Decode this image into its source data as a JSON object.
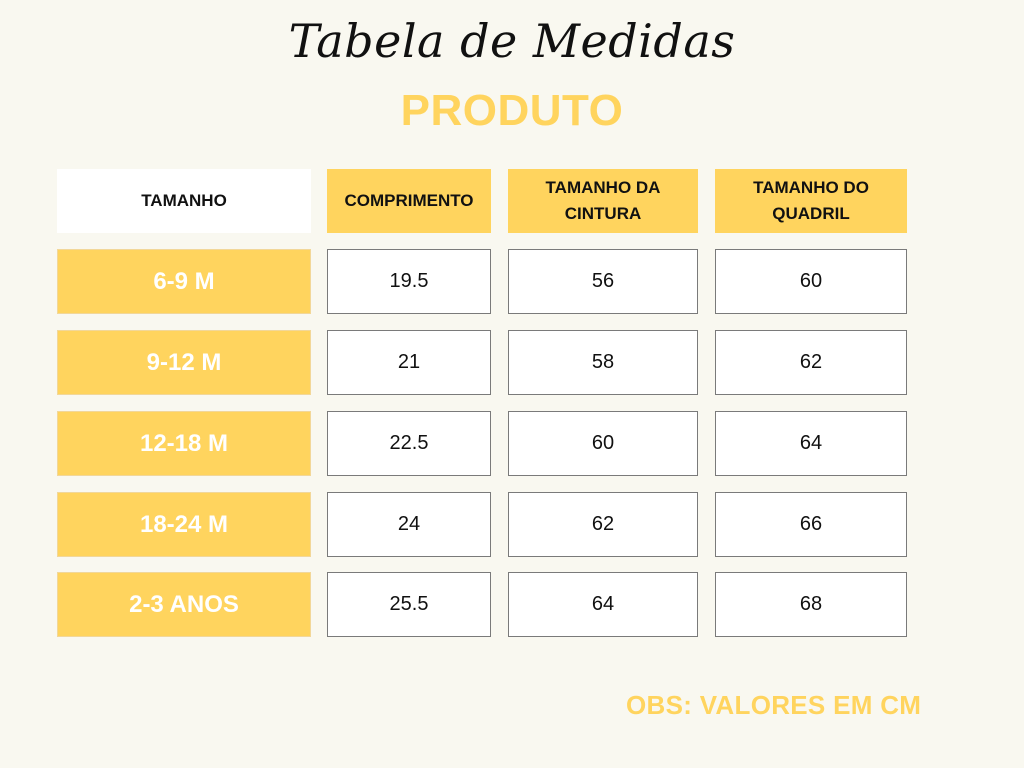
{
  "title": "Tabela de Medidas",
  "subtitle": "PRODUTO",
  "headers": [
    "TAMANHO",
    "COMPRIMENTO",
    "TAMANHO DA CINTURA",
    "TAMANHO DO QUADRIL"
  ],
  "rows": [
    {
      "size": "6-9 M",
      "comprimento": "19.5",
      "cintura": "56",
      "quadril": "60"
    },
    {
      "size": "9-12 M",
      "comprimento": "21",
      "cintura": "58",
      "quadril": "62"
    },
    {
      "size": "12-18 M",
      "comprimento": "22.5",
      "cintura": "60",
      "quadril": "64"
    },
    {
      "size": "18-24 M",
      "comprimento": "24",
      "cintura": "62",
      "quadril": "66"
    },
    {
      "size": "2-3 ANOS",
      "comprimento": "25.5",
      "cintura": "64",
      "quadril": "68"
    }
  ],
  "note": "OBS: VALORES EM CM",
  "colors": {
    "accent": "#ffd45e",
    "background": "#f9f8f0",
    "text": "#111111"
  }
}
